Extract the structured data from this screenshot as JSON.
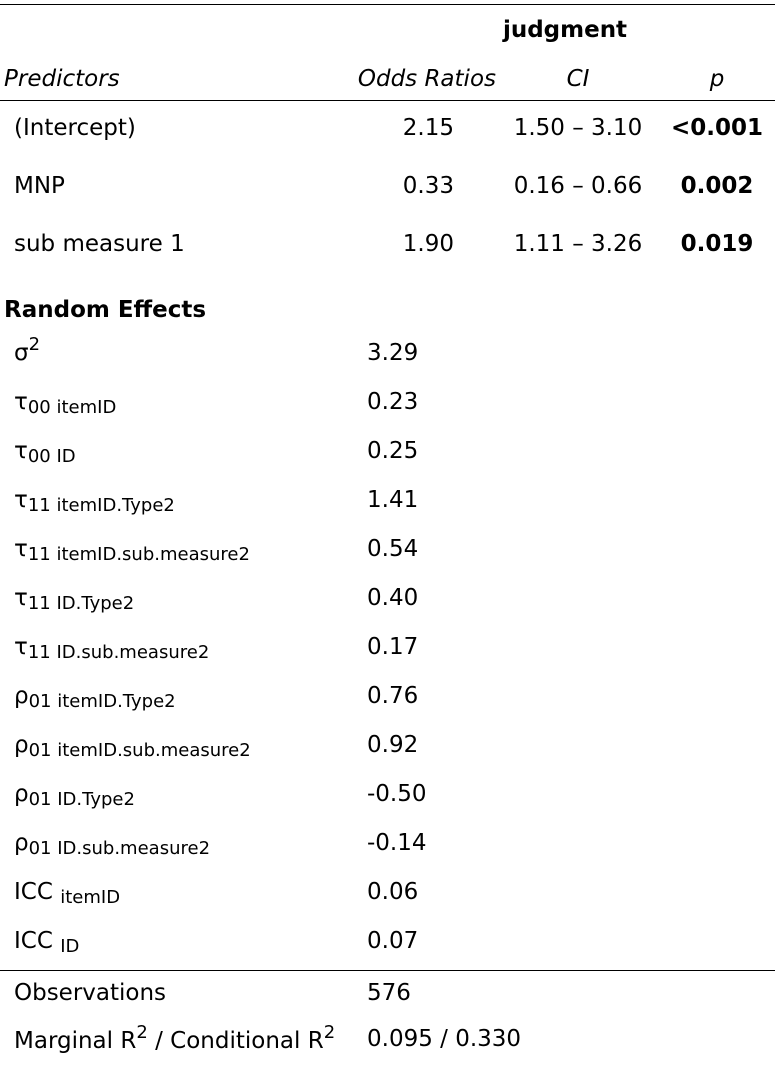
{
  "header": {
    "dependent": "judgment",
    "col_predictors": "Predictors",
    "col_or": "Odds Ratios",
    "col_ci": "CI",
    "col_p": "p"
  },
  "fixed_effects": [
    {
      "name": "(Intercept)",
      "or": "2.15",
      "ci": "1.50 – 3.10",
      "p": "<0.001"
    },
    {
      "name": "MNP",
      "or": "0.33",
      "ci": "0.16 – 0.66",
      "p": "0.002"
    },
    {
      "name": "sub measure 1",
      "or": "1.90",
      "ci": "1.11 – 3.26",
      "p": "0.019"
    }
  ],
  "random_effects": {
    "title": "Random Effects",
    "rows": [
      {
        "sym": "σ",
        "sup": "2",
        "sub": "",
        "value": "3.29"
      },
      {
        "sym": "τ",
        "sup": "",
        "sub": "00 itemID",
        "value": "0.23"
      },
      {
        "sym": "τ",
        "sup": "",
        "sub": "00 ID",
        "value": "0.25"
      },
      {
        "sym": "τ",
        "sup": "",
        "sub": "11 itemID.Type2",
        "value": "1.41"
      },
      {
        "sym": "τ",
        "sup": "",
        "sub": "11 itemID.sub.measure2",
        "value": "0.54"
      },
      {
        "sym": "τ",
        "sup": "",
        "sub": "11 ID.Type2",
        "value": "0.40"
      },
      {
        "sym": "τ",
        "sup": "",
        "sub": "11 ID.sub.measure2",
        "value": "0.17"
      },
      {
        "sym": "ρ",
        "sup": "",
        "sub": "01 itemID.Type2",
        "value": "0.76"
      },
      {
        "sym": "ρ",
        "sup": "",
        "sub": "01 itemID.sub.measure2",
        "value": "0.92"
      },
      {
        "sym": "ρ",
        "sup": "",
        "sub": "01 ID.Type2",
        "value": "-0.50"
      },
      {
        "sym": "ρ",
        "sup": "",
        "sub": "01 ID.sub.measure2",
        "value": "-0.14"
      },
      {
        "sym": "ICC ",
        "sup": "",
        "sub": "itemID",
        "value": "0.06"
      },
      {
        "sym": "ICC ",
        "sup": "",
        "sub": "ID",
        "value": "0.07"
      }
    ]
  },
  "model_fit": {
    "observations_label": "Observations",
    "observations_value": "576",
    "r2_label_a": "Marginal R",
    "r2_sup_a": "2",
    "r2_label_b": " / Conditional R",
    "r2_sup_b": "2",
    "r2_value": "0.095 / 0.330"
  }
}
